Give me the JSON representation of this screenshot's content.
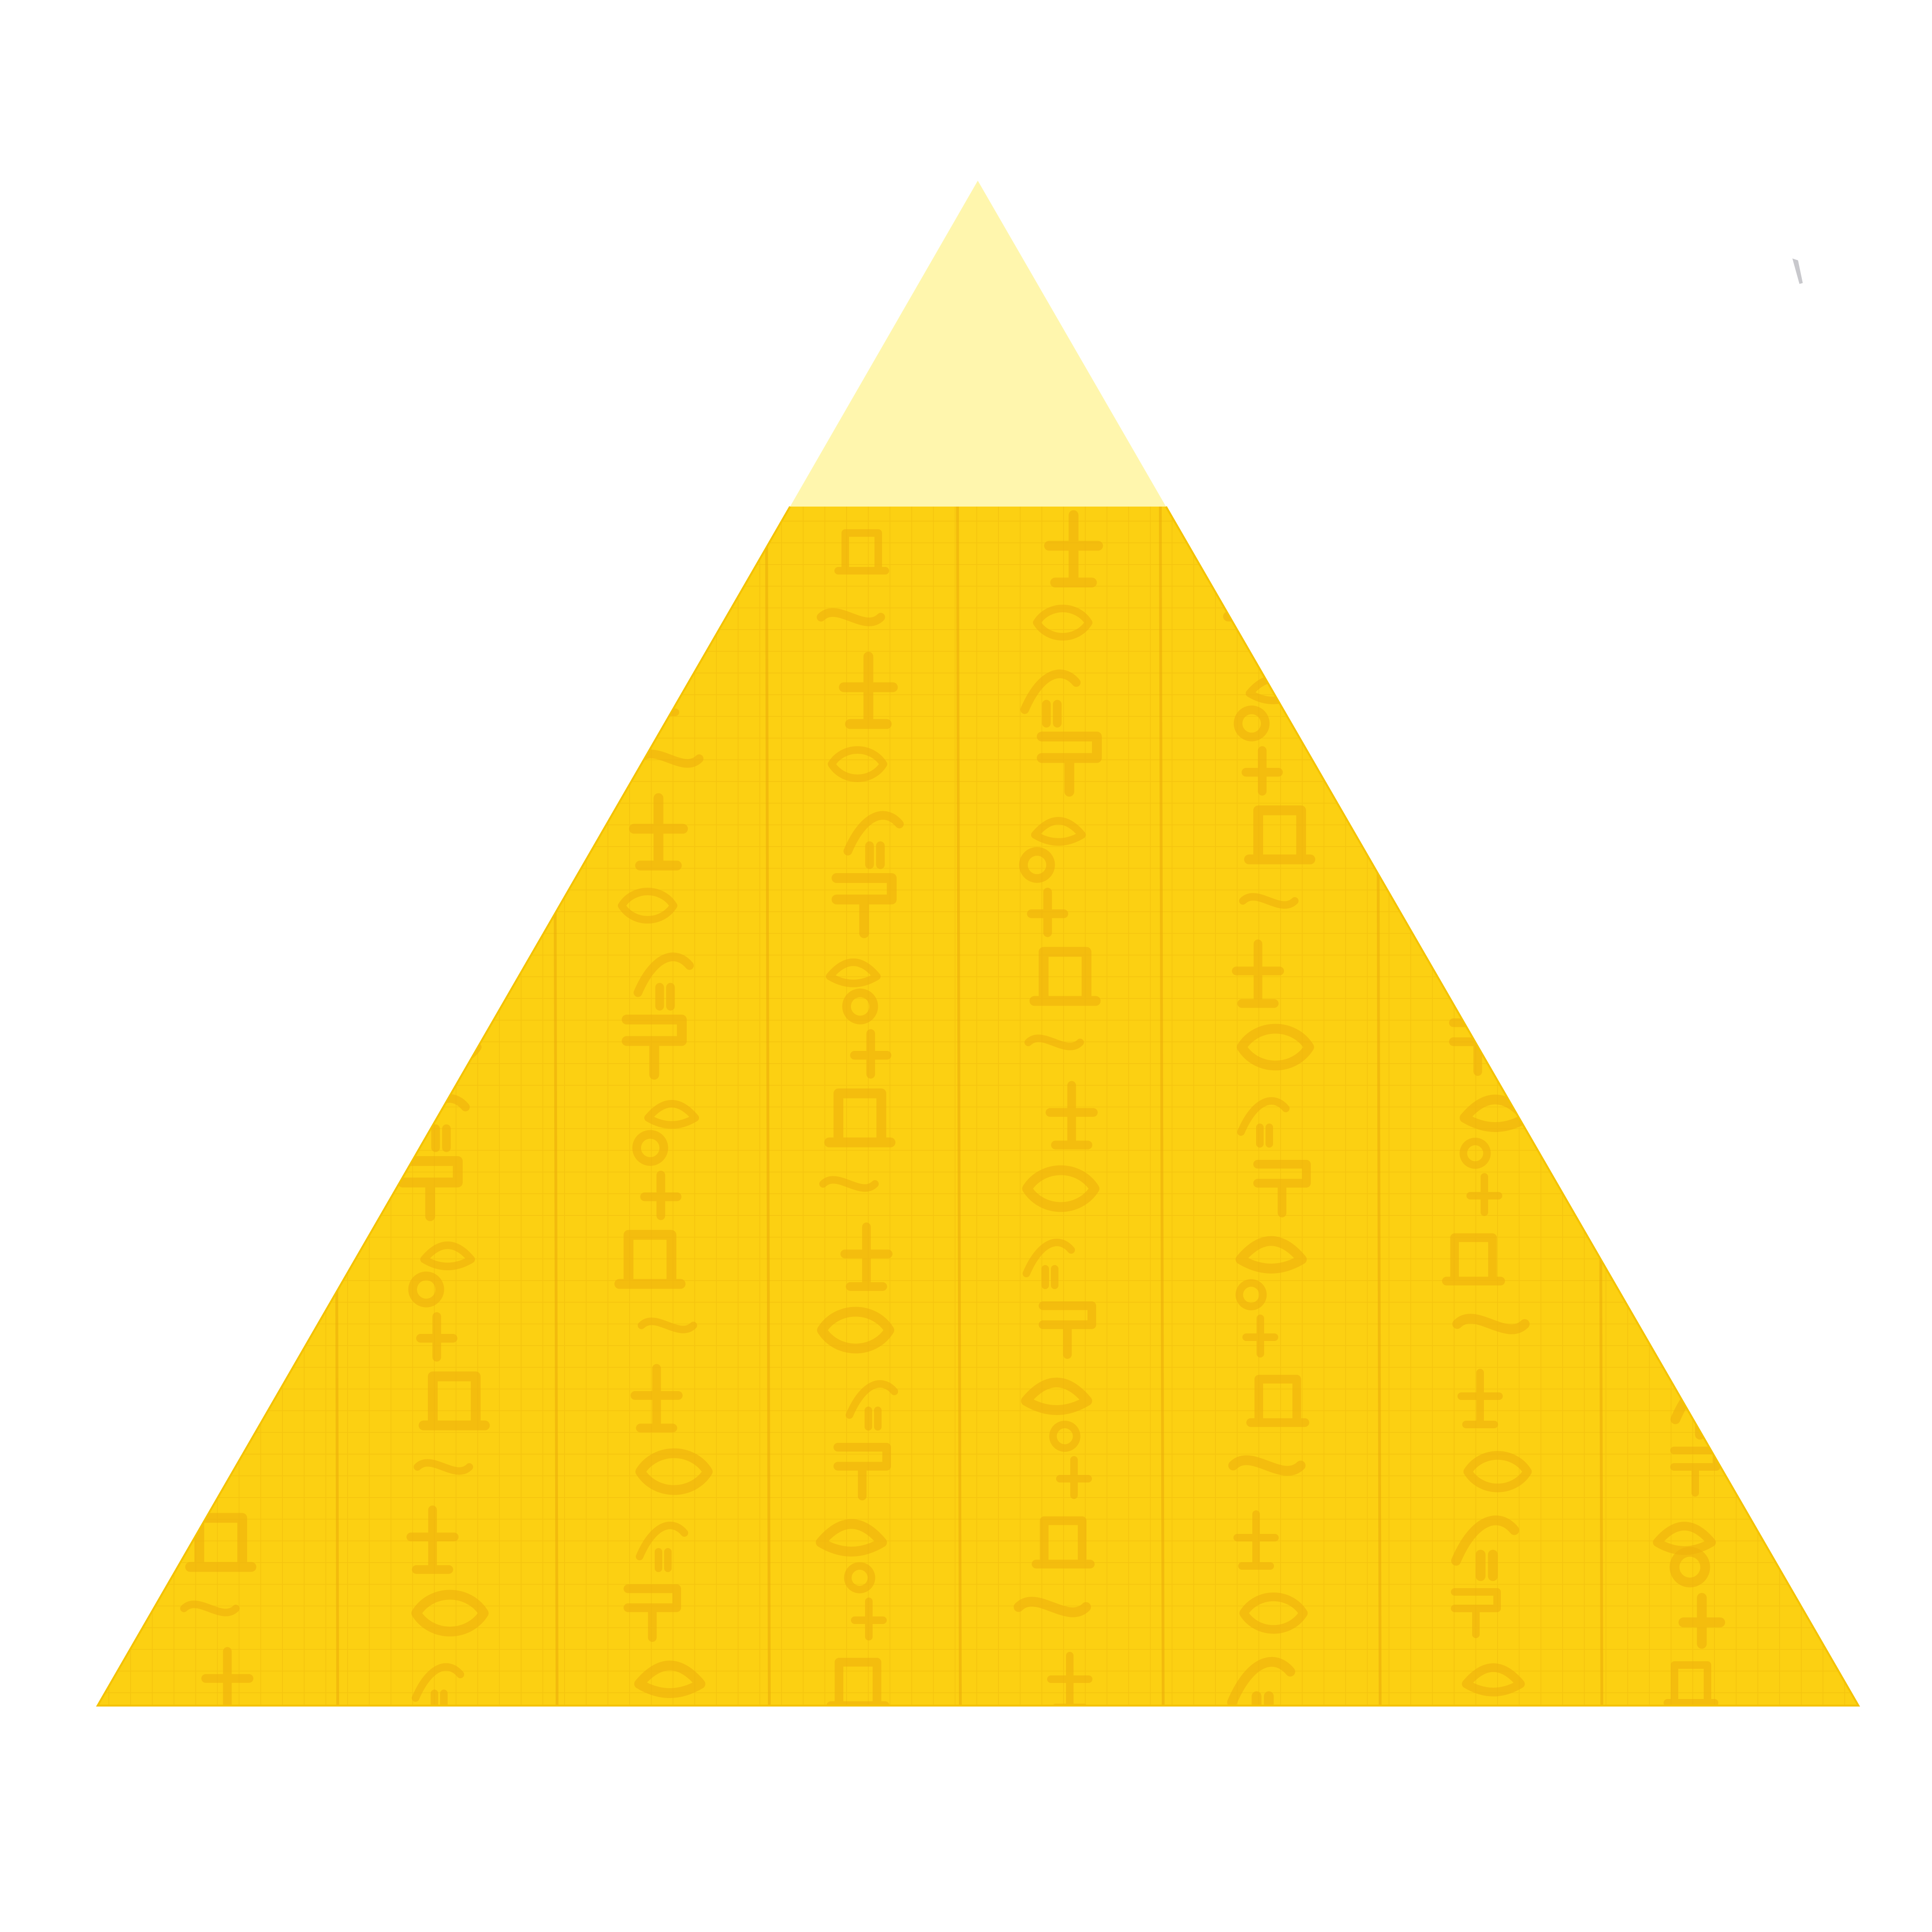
{
  "image": {
    "subject": "pyramid-with-hieroglyph-pattern",
    "colors": {
      "background": "#ffffff",
      "apex": "#fff6ad",
      "body": "#fcd012",
      "body_shade": "#f9c60e",
      "grid_line": "#e8ae08",
      "glyph": "#efb00c",
      "column_line": "#eaab0a",
      "edge": "#f4c200",
      "corner_mark": "#c8c8cc"
    },
    "icons": [
      "pyramid-icon",
      "corner-mark-icon"
    ]
  }
}
